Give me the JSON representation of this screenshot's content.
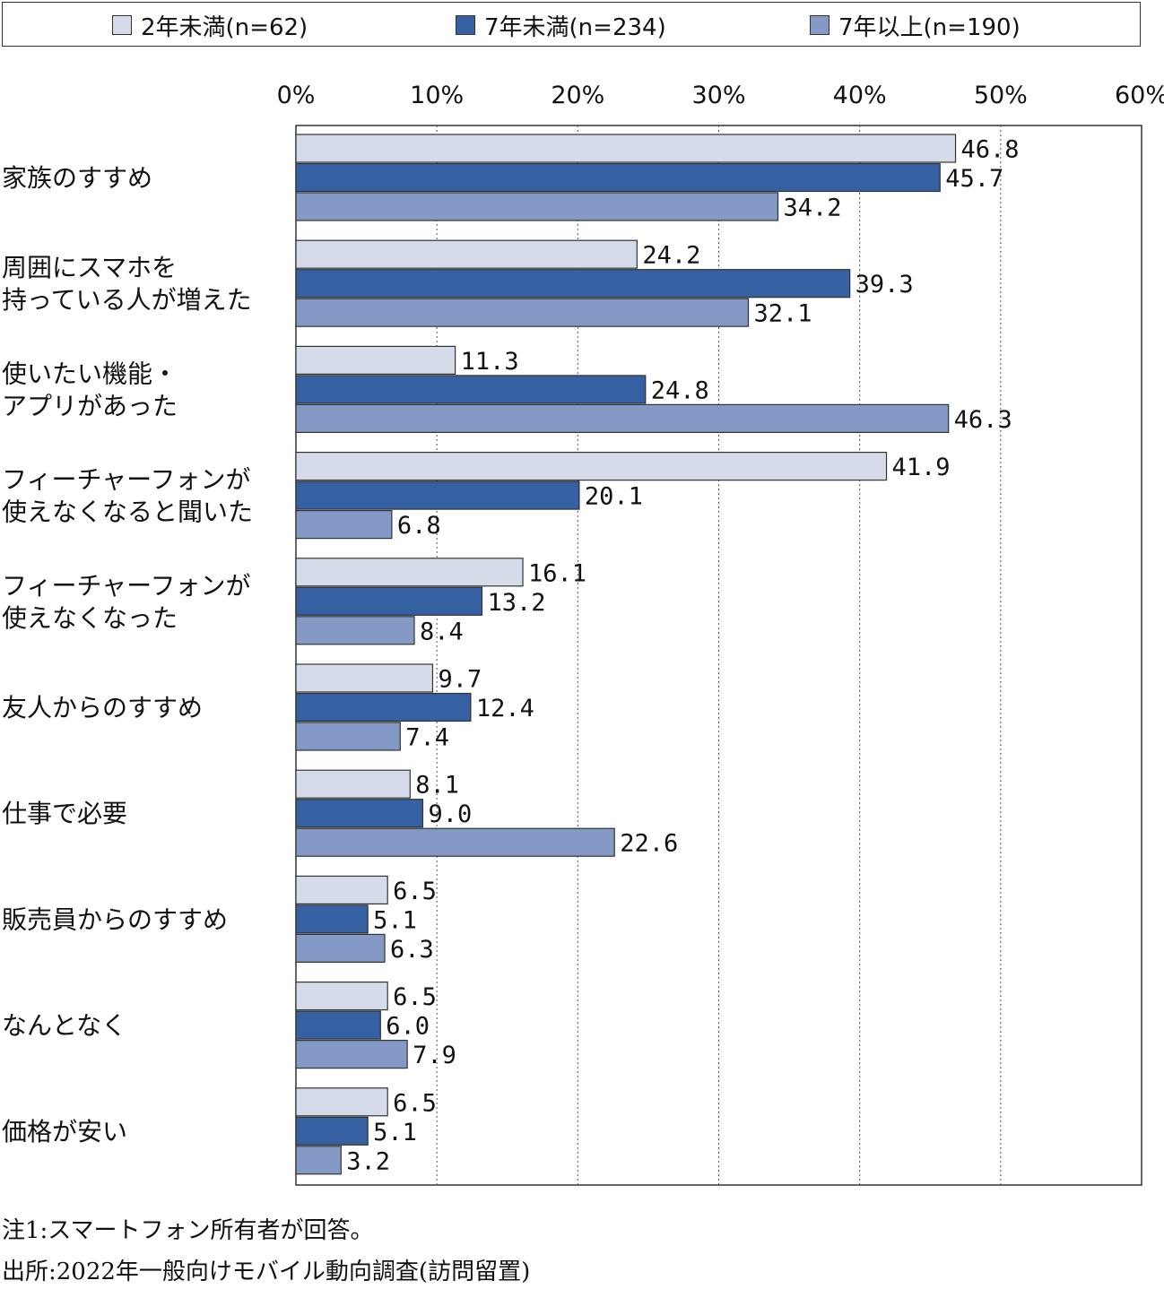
{
  "legend": [
    {
      "label": "2年未満(n=62)",
      "color": "#d5dbe9"
    },
    {
      "label": "7年未満(n=234)",
      "color": "#3560a2"
    },
    {
      "label": "7年以上(n=190)",
      "color": "#8599c6"
    }
  ],
  "chart_data": {
    "type": "bar",
    "orientation": "horizontal",
    "xlim": [
      0,
      60
    ],
    "x_ticks": [
      "0%",
      "10%",
      "20%",
      "30%",
      "40%",
      "50%",
      "60%"
    ],
    "grid": "vertical dotted",
    "legend_position": "top",
    "categories": [
      [
        "家族のすすめ"
      ],
      [
        "周囲にスマホを",
        "持っている人が増えた"
      ],
      [
        "使いたい機能・",
        "アプリがあった"
      ],
      [
        "フィーチャーフォンが",
        "使えなくなると聞いた"
      ],
      [
        "フィーチャーフォンが",
        "使えなくなった"
      ],
      [
        "友人からのすすめ"
      ],
      [
        "仕事で必要"
      ],
      [
        "販売員からのすすめ"
      ],
      [
        "なんとなく"
      ],
      [
        "価格が安い"
      ]
    ],
    "series": [
      {
        "name": "2年未満(n=62)",
        "color": "#d5dbe9",
        "values": [
          46.8,
          24.2,
          11.3,
          41.9,
          16.1,
          9.7,
          8.1,
          6.5,
          6.5,
          6.5
        ],
        "labels": [
          "46.8",
          "24.2",
          "11.3",
          "41.9",
          "16.1",
          "9.7",
          "8.1",
          "6.5",
          "6.5",
          "6.5"
        ]
      },
      {
        "name": "7年未満(n=234)",
        "color": "#3560a2",
        "values": [
          45.7,
          39.3,
          24.8,
          20.1,
          13.2,
          12.4,
          9.0,
          5.1,
          6.0,
          5.1
        ],
        "labels": [
          "45.7",
          "39.3",
          "24.8",
          "20.1",
          "13.2",
          "12.4",
          "9.0",
          "5.1",
          "6.0",
          "5.1"
        ]
      },
      {
        "name": "7年以上(n=190)",
        "color": "#8599c6",
        "values": [
          34.2,
          32.1,
          46.3,
          6.8,
          8.4,
          7.4,
          22.6,
          6.3,
          7.9,
          3.2
        ],
        "labels": [
          "34.2",
          "32.1",
          "46.3",
          "6.8",
          "8.4",
          "7.4",
          "22.6",
          "6.3",
          "7.9",
          "3.2"
        ]
      }
    ]
  },
  "notes": {
    "note1": "注1:スマートフォン所有者が回答。",
    "source": "出所:2022年一般向けモバイル動向調査(訪問留置)"
  }
}
